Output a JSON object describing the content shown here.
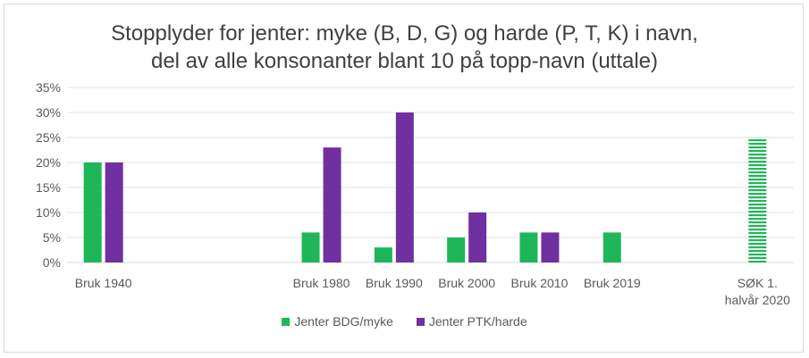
{
  "chart_data": {
    "type": "bar",
    "title_lines": [
      "Stopplyder for jenter: myke (B, D, G) og harde (P, T, K) i navn,",
      "del av alle konsonanter blant 10 på topp-navn (uttale)"
    ],
    "categories": [
      "Bruk 1940",
      "",
      "",
      "Bruk 1980",
      "Bruk 1990",
      "Bruk 2000",
      "Bruk 2010",
      "Bruk 2019",
      "",
      "SØK 1. halvår 2020"
    ],
    "category_label_lines": [
      [
        "Bruk 1940"
      ],
      [],
      [],
      [
        "Bruk 1980"
      ],
      [
        "Bruk 1990"
      ],
      [
        "Bruk 2000"
      ],
      [
        "Bruk 2010"
      ],
      [
        "Bruk 2019"
      ],
      [],
      [
        "SØK 1.",
        "halvår 2020"
      ]
    ],
    "series": [
      {
        "name": "Jenter BDG/myke",
        "color": "#1fb65a",
        "values": [
          20,
          null,
          null,
          6,
          3,
          5,
          6,
          6,
          null,
          25
        ]
      },
      {
        "name": "Jenter PTK/harde",
        "color": "#7030a0",
        "values": [
          20,
          null,
          null,
          23,
          30,
          10,
          6,
          null,
          null,
          null
        ]
      }
    ],
    "striped_category": "SØK 1. halvår 2020",
    "yticks": [
      "0%",
      "5%",
      "10%",
      "15%",
      "20%",
      "25%",
      "30%",
      "35%"
    ],
    "ylim": [
      0,
      35
    ],
    "grid": true,
    "legend_position": "bottom"
  }
}
